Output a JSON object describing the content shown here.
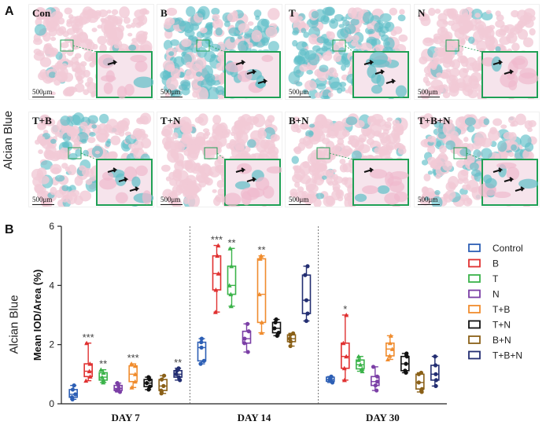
{
  "panel_a": {
    "letter": "A",
    "y_title": "Alcian Blue",
    "tiles": [
      {
        "label": "Con",
        "scale": "500μm",
        "stain": "light"
      },
      {
        "label": "B",
        "scale": "500μm",
        "stain": "heavy"
      },
      {
        "label": "T",
        "scale": "500μm",
        "stain": "heavy"
      },
      {
        "label": "N",
        "scale": "500μm",
        "stain": "light"
      },
      {
        "label": "T+B",
        "scale": "500μm",
        "stain": "medium"
      },
      {
        "label": "T+N",
        "scale": "500μm",
        "stain": "light"
      },
      {
        "label": "B+N",
        "scale": "500μm",
        "stain": "light"
      },
      {
        "label": "T+B+N",
        "scale": "500μm",
        "stain": "medium"
      }
    ],
    "colors": {
      "tissue": "#f1c9d6",
      "blue_stain": "#5fbfc8",
      "inset_border": "#1fa055",
      "arrow": "#111111"
    }
  },
  "panel_b": {
    "letter": "B",
    "stain_title": "Alcian Blue"
  },
  "chart_data": {
    "type": "box",
    "ylabel": "Mean IOD/Area (%)",
    "ylim": [
      0,
      6
    ],
    "yticks": [
      0,
      2,
      4,
      6
    ],
    "groups": [
      "DAY 7",
      "DAY 14",
      "DAY 30"
    ],
    "series": [
      {
        "name": "Control",
        "color": "#2d5fb5",
        "boxes": [
          {
            "min": 0.15,
            "q1": 0.22,
            "median": 0.32,
            "q3": 0.48,
            "max": 0.62,
            "sig": ""
          },
          {
            "min": 1.35,
            "q1": 1.45,
            "median": 1.9,
            "q3": 2.08,
            "max": 2.2,
            "sig": ""
          },
          {
            "min": 0.72,
            "q1": 0.76,
            "median": 0.82,
            "q3": 0.9,
            "max": 0.92,
            "sig": ""
          }
        ]
      },
      {
        "name": "B",
        "color": "#e03131",
        "boxes": [
          {
            "min": 0.78,
            "q1": 0.92,
            "median": 1.1,
            "q3": 1.35,
            "max": 2.05,
            "sig": "***"
          },
          {
            "min": 3.1,
            "q1": 3.85,
            "median": 4.4,
            "q3": 5.0,
            "max": 5.35,
            "sig": "***"
          },
          {
            "min": 0.8,
            "q1": 1.2,
            "median": 1.6,
            "q3": 2.05,
            "max": 3.0,
            "sig": "*"
          }
        ]
      },
      {
        "name": "T",
        "color": "#3bb34a",
        "boxes": [
          {
            "min": 0.72,
            "q1": 0.8,
            "median": 0.9,
            "q3": 1.05,
            "max": 1.15,
            "sig": "**"
          },
          {
            "min": 3.3,
            "q1": 3.7,
            "median": 4.0,
            "q3": 4.65,
            "max": 5.25,
            "sig": "**"
          },
          {
            "min": 1.1,
            "q1": 1.18,
            "median": 1.32,
            "q3": 1.48,
            "max": 1.6,
            "sig": ""
          }
        ]
      },
      {
        "name": "N",
        "color": "#7b3fa6",
        "boxes": [
          {
            "min": 0.4,
            "q1": 0.45,
            "median": 0.52,
            "q3": 0.62,
            "max": 0.7,
            "sig": ""
          },
          {
            "min": 1.75,
            "q1": 2.05,
            "median": 2.2,
            "q3": 2.45,
            "max": 2.7,
            "sig": ""
          },
          {
            "min": 0.45,
            "q1": 0.62,
            "median": 0.75,
            "q3": 0.92,
            "max": 1.25,
            "sig": ""
          }
        ]
      },
      {
        "name": "T+B",
        "color": "#f08c2e",
        "boxes": [
          {
            "min": 0.55,
            "q1": 0.75,
            "median": 1.0,
            "q3": 1.28,
            "max": 1.35,
            "sig": "***"
          },
          {
            "min": 2.4,
            "q1": 2.75,
            "median": 3.7,
            "q3": 4.9,
            "max": 5.0,
            "sig": "**"
          },
          {
            "min": 1.5,
            "q1": 1.62,
            "median": 1.85,
            "q3": 2.05,
            "max": 2.3,
            "sig": ""
          }
        ]
      },
      {
        "name": "T+N",
        "color": "#111111",
        "boxes": [
          {
            "min": 0.48,
            "q1": 0.58,
            "median": 0.7,
            "q3": 0.82,
            "max": 0.9,
            "sig": ""
          },
          {
            "min": 2.3,
            "q1": 2.4,
            "median": 2.55,
            "q3": 2.75,
            "max": 2.85,
            "sig": ""
          },
          {
            "min": 1.05,
            "q1": 1.12,
            "median": 1.35,
            "q3": 1.6,
            "max": 1.7,
            "sig": ""
          }
        ]
      },
      {
        "name": "B+N",
        "color": "#8a6018",
        "boxes": [
          {
            "min": 0.35,
            "q1": 0.45,
            "median": 0.6,
            "q3": 0.82,
            "max": 0.95,
            "sig": ""
          },
          {
            "min": 1.95,
            "q1": 2.1,
            "median": 2.2,
            "q3": 2.33,
            "max": 2.38,
            "sig": ""
          },
          {
            "min": 0.4,
            "q1": 0.5,
            "median": 0.72,
            "q3": 1.0,
            "max": 1.05,
            "sig": ""
          }
        ]
      },
      {
        "name": "T+B+N",
        "color": "#232e72",
        "boxes": [
          {
            "min": 0.8,
            "q1": 0.9,
            "median": 1.0,
            "q3": 1.12,
            "max": 1.2,
            "sig": "**"
          },
          {
            "min": 2.8,
            "q1": 3.05,
            "median": 3.5,
            "q3": 4.35,
            "max": 4.65,
            "sig": ""
          },
          {
            "min": 0.6,
            "q1": 0.8,
            "median": 1.0,
            "q3": 1.3,
            "max": 1.6,
            "sig": ""
          }
        ]
      }
    ]
  }
}
